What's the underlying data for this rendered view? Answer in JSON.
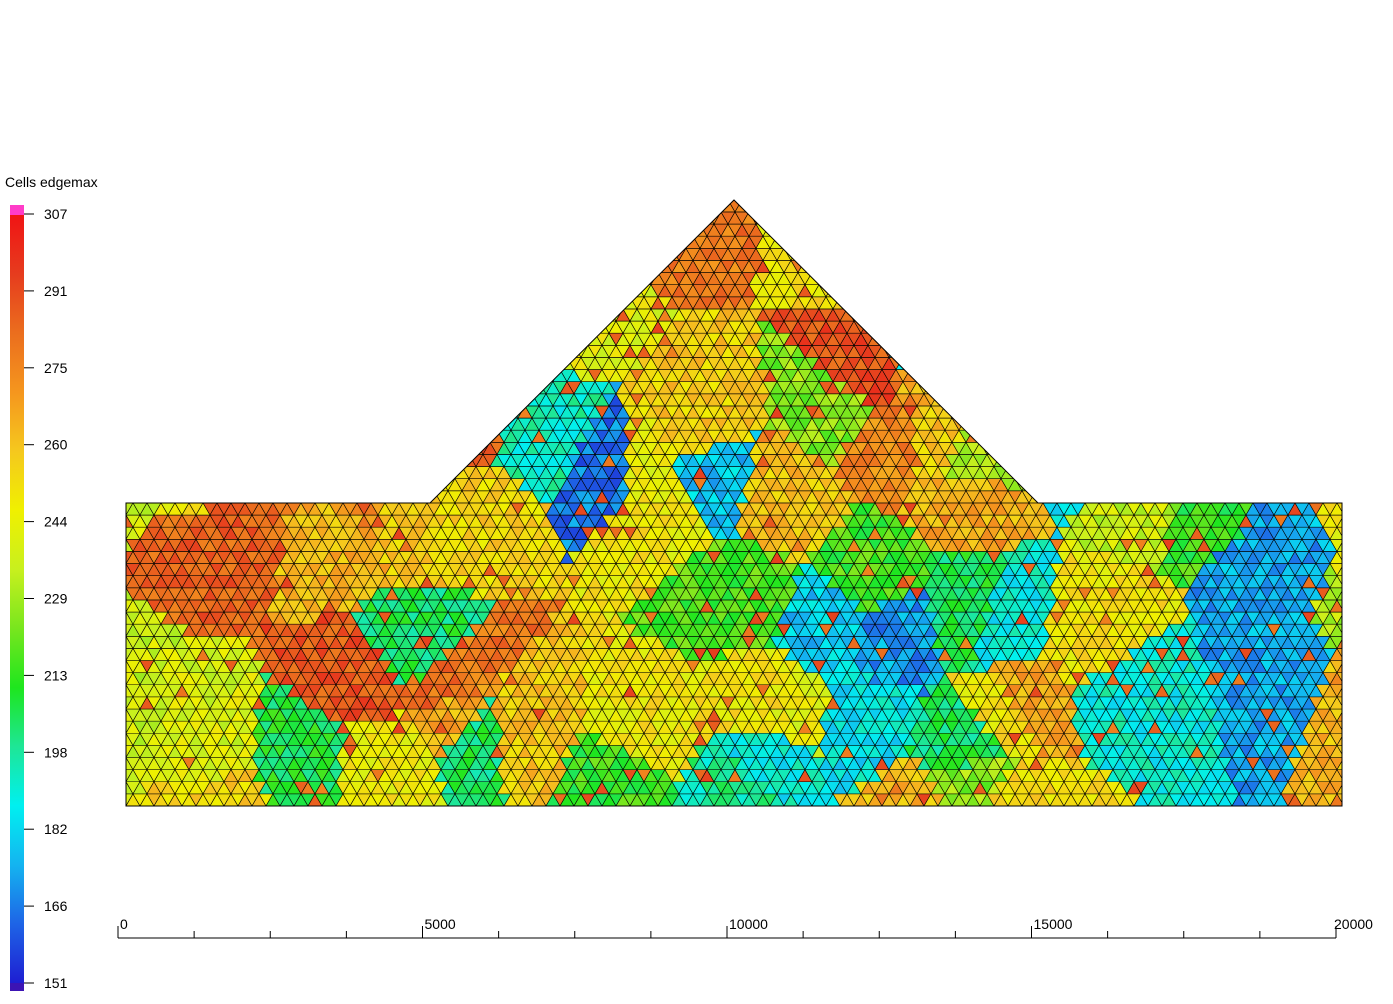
{
  "chart_data": {
    "type": "heatmap",
    "subtype": "triangular-mesh",
    "colorbar": {
      "title": "Cells edgemax",
      "ticks": [
        "307",
        "291",
        "275",
        "260",
        "244",
        "229",
        "213",
        "198",
        "182",
        "166",
        "151"
      ],
      "range": [
        151,
        307
      ],
      "colormap": [
        "#1e1ed2",
        "#1e64e6",
        "#14b4f0",
        "#00f0f0",
        "#1ee696",
        "#1ee61e",
        "#78e61e",
        "#c8f01e",
        "#f0f000",
        "#f5c81e",
        "#f5961e",
        "#eb6e1e",
        "#e63c1e",
        "#f01414"
      ],
      "overflow_color": "#ff3cc8",
      "underflow_color": "#3c14b4"
    },
    "x_axis": {
      "range": [
        0,
        20000
      ],
      "ticks": [
        "0",
        "5000",
        "10000",
        "15000",
        "20000"
      ],
      "minor_tick_step": 1250
    },
    "domain_outline_xy": [
      [
        0,
        0
      ],
      [
        20000,
        0
      ],
      [
        20000,
        5000
      ],
      [
        15000,
        5000
      ],
      [
        10000,
        10000
      ],
      [
        5000,
        5000
      ],
      [
        0,
        5000
      ]
    ],
    "grid": false,
    "legend_position": "left"
  }
}
